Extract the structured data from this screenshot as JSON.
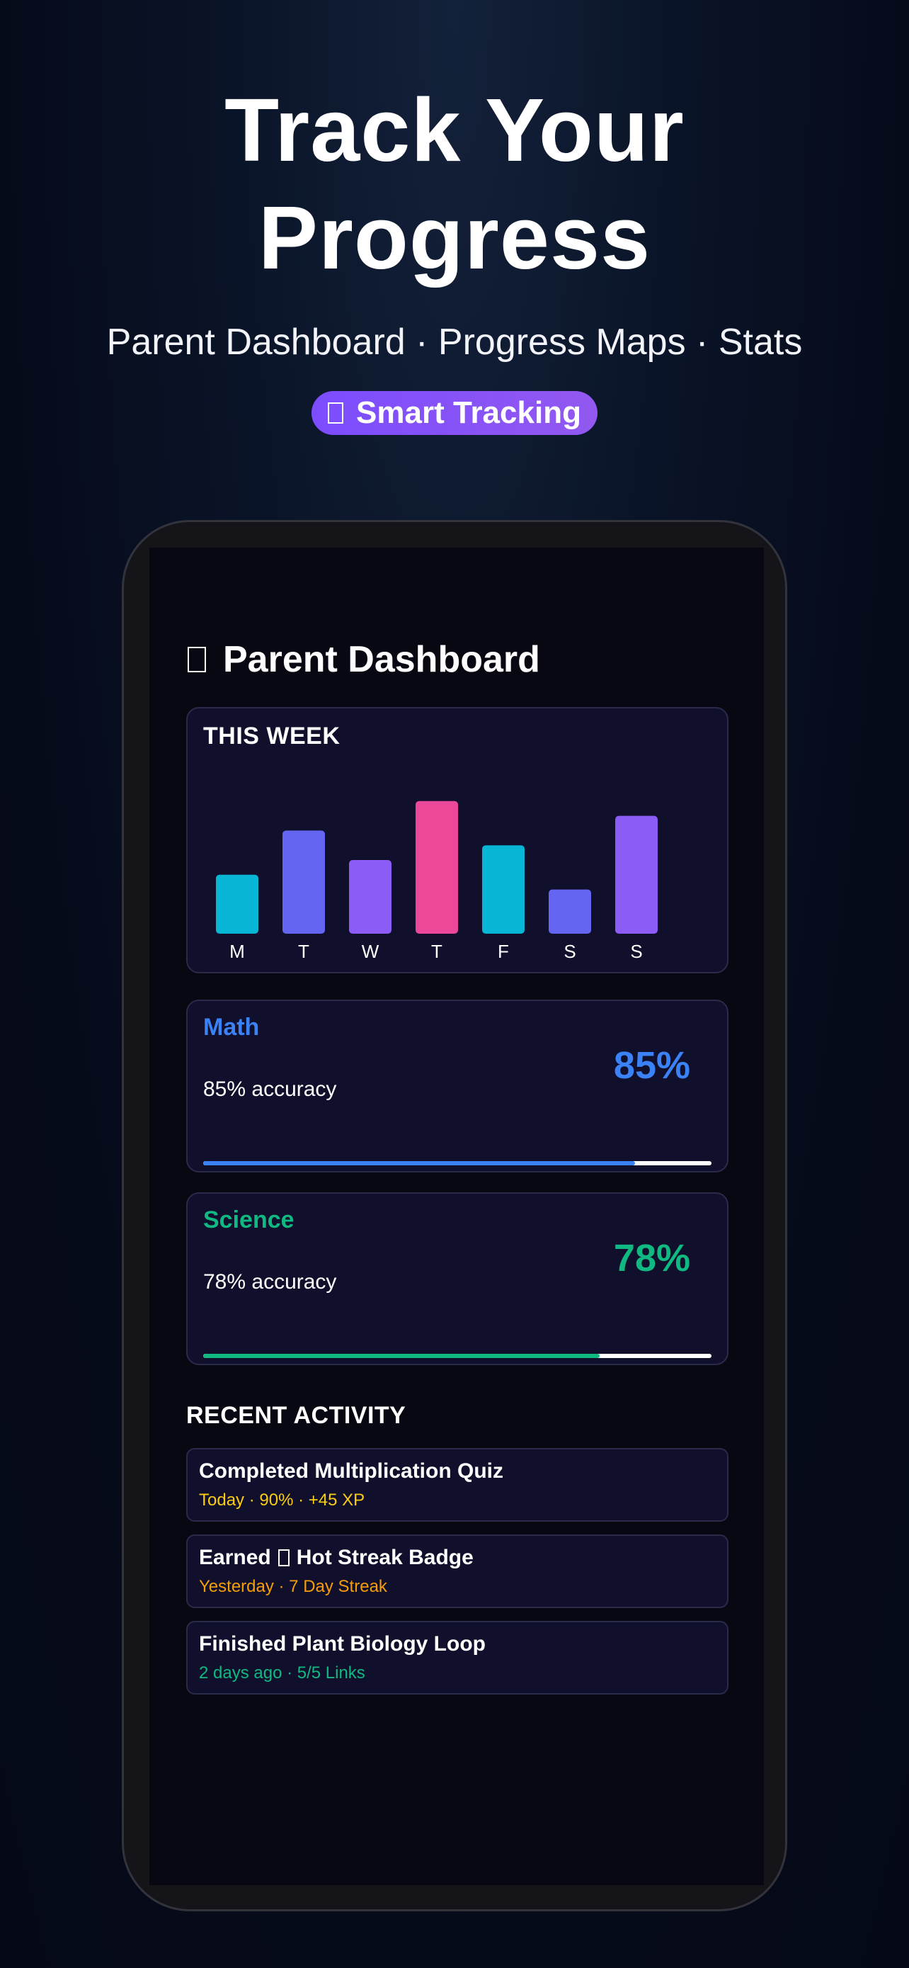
{
  "hero": {
    "title_line1": "Track Your",
    "title_line2": "Progress",
    "subtitle": "Parent Dashboard · Progress Maps · Stats",
    "badge_label": "Smart Tracking"
  },
  "dashboard": {
    "title": "Parent Dashboard"
  },
  "chart_data": {
    "type": "bar",
    "title": "THIS WEEK",
    "categories": [
      "M",
      "T",
      "W",
      "T",
      "F",
      "S",
      "S"
    ],
    "values": [
      40,
      70,
      50,
      90,
      60,
      30,
      80
    ],
    "colors": [
      "#06b6d4",
      "#6366f1",
      "#8b5cf6",
      "#ec4899",
      "#06b6d4",
      "#6366f1",
      "#8b5cf6"
    ],
    "ylim": [
      0,
      100
    ],
    "grid": false,
    "legend": "none"
  },
  "subjects": [
    {
      "name": "Math",
      "accuracy_text": "85% accuracy",
      "percent_text": "85%",
      "progress": 0.85,
      "color": "#3b82f6"
    },
    {
      "name": "Science",
      "accuracy_text": "78% accuracy",
      "percent_text": "78%",
      "progress": 0.78,
      "color": "#10b981"
    }
  ],
  "recent_activity": {
    "title": "RECENT ACTIVITY",
    "items": [
      {
        "title": "Completed Multiplication Quiz",
        "meta": "Today · 90% · +45 XP",
        "meta_color": "#facc15"
      },
      {
        "title_before_icon": "Earned",
        "title_after_icon": "Hot Streak Badge",
        "icon": "fire-icon",
        "meta": "Yesterday · 7 Day Streak",
        "meta_color": "#f59e0b"
      },
      {
        "title": "Finished Plant Biology Loop",
        "meta": "2 days ago · 5/5 Links",
        "meta_color": "#10b981"
      }
    ]
  },
  "icons": {
    "badge_icon": "sparkle-icon",
    "dashboard_icon": "chart-icon"
  }
}
